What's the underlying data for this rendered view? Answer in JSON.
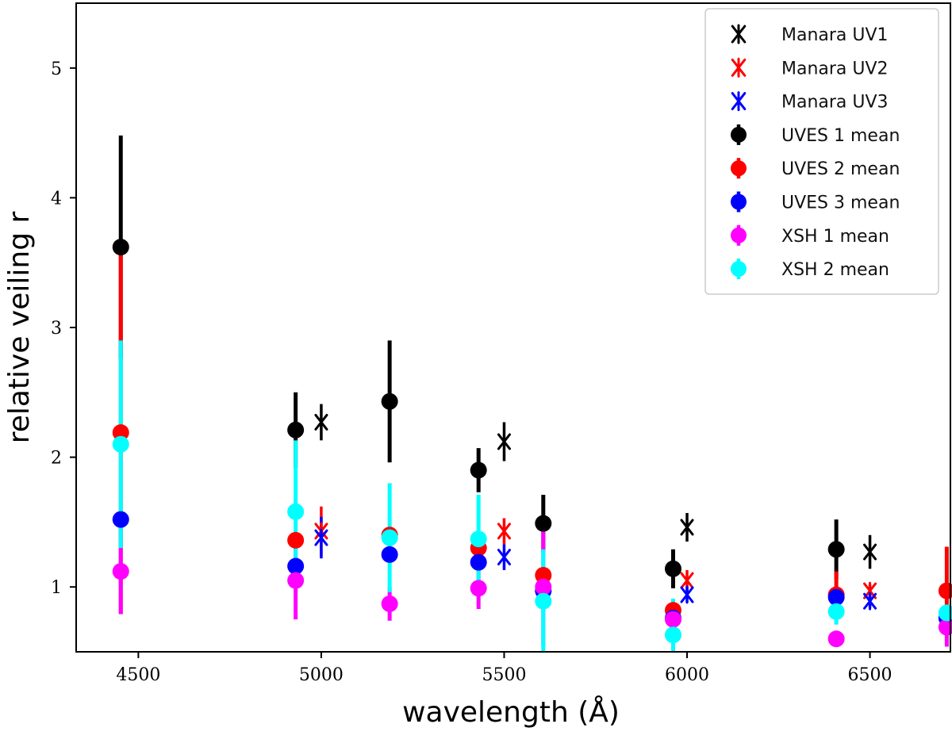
{
  "chart_data": {
    "type": "scatter",
    "title": "",
    "xlabel": "wavelength (Å)",
    "ylabel": "relative veiling r",
    "xlim": [
      4330,
      6720
    ],
    "ylim": [
      0.5,
      5.5
    ],
    "xticks": [
      4500,
      5000,
      5500,
      6000,
      6500
    ],
    "yticks": [
      1,
      2,
      3,
      4,
      5
    ],
    "legend_position": "top-right",
    "series": [
      {
        "name": "Manara UV1",
        "marker": "star",
        "color": "#000000",
        "points": [
          {
            "x": 5000,
            "y": 2.27,
            "err": 0.14
          },
          {
            "x": 5500,
            "y": 2.12,
            "err": 0.15
          },
          {
            "x": 6000,
            "y": 1.46,
            "err": 0.11
          },
          {
            "x": 6500,
            "y": 1.27,
            "err": 0.13
          }
        ]
      },
      {
        "name": "Manara UV2",
        "marker": "star",
        "color": "#ff0000",
        "points": [
          {
            "x": 5000,
            "y": 1.43,
            "err": 0.19
          },
          {
            "x": 5500,
            "y": 1.43,
            "err": 0.1
          },
          {
            "x": 6000,
            "y": 1.05,
            "err": 0.08
          },
          {
            "x": 6500,
            "y": 0.97,
            "err": 0.05
          }
        ]
      },
      {
        "name": "Manara UV3",
        "marker": "star",
        "color": "#0000ff",
        "points": [
          {
            "x": 5000,
            "y": 1.38,
            "err": 0.16
          },
          {
            "x": 5500,
            "y": 1.23,
            "err": 0.1
          },
          {
            "x": 6000,
            "y": 0.94,
            "err": 0.06
          },
          {
            "x": 6500,
            "y": 0.89,
            "err": 0.05
          }
        ]
      },
      {
        "name": "UVES 1 mean",
        "marker": "circle",
        "color": "#000000",
        "points": [
          {
            "x": 4452,
            "y": 3.62,
            "err": 0.86
          },
          {
            "x": 4930,
            "y": 2.21,
            "err": 0.29
          },
          {
            "x": 5187,
            "y": 2.43,
            "err": 0.47
          },
          {
            "x": 5430,
            "y": 1.9,
            "err": 0.17
          },
          {
            "x": 5607,
            "y": 1.49,
            "err": 0.22
          },
          {
            "x": 5962,
            "y": 1.14,
            "err": 0.15
          },
          {
            "x": 6408,
            "y": 1.29,
            "err": 0.23
          }
        ]
      },
      {
        "name": "UVES 2 mean",
        "marker": "circle",
        "color": "#ff0000",
        "points": [
          {
            "x": 4452,
            "y": 2.19,
            "err": 1.4
          },
          {
            "x": 4930,
            "y": 1.36,
            "err": 0.05
          },
          {
            "x": 5187,
            "y": 1.4,
            "err": 0.05
          },
          {
            "x": 5430,
            "y": 1.3,
            "err": 0.05
          },
          {
            "x": 5607,
            "y": 1.09,
            "err": 0.05
          },
          {
            "x": 5962,
            "y": 0.82,
            "err": 0.05
          },
          {
            "x": 6408,
            "y": 0.94,
            "err": 0.18
          },
          {
            "x": 6710,
            "y": 0.97,
            "err": 0.34
          }
        ]
      },
      {
        "name": "UVES 3 mean",
        "marker": "circle",
        "color": "#0000ff",
        "points": [
          {
            "x": 4452,
            "y": 1.52,
            "err": 0.05
          },
          {
            "x": 4930,
            "y": 1.16,
            "err": 0.05
          },
          {
            "x": 5187,
            "y": 1.25,
            "err": 0.05
          },
          {
            "x": 5430,
            "y": 1.19,
            "err": 0.05
          },
          {
            "x": 5607,
            "y": 0.97,
            "err": 0.05
          },
          {
            "x": 5962,
            "y": 0.76,
            "err": 0.05
          },
          {
            "x": 6408,
            "y": 0.92,
            "err": 0.05
          },
          {
            "x": 6710,
            "y": 0.76,
            "err": 0.05
          }
        ]
      },
      {
        "name": "XSH 1 mean",
        "marker": "circle",
        "color": "#ff00ff",
        "points": [
          {
            "x": 4452,
            "y": 1.12,
            "err": 0.33
          },
          {
            "x": 4930,
            "y": 1.05,
            "err": 0.3
          },
          {
            "x": 5187,
            "y": 0.87,
            "err": 0.13
          },
          {
            "x": 5430,
            "y": 0.99,
            "err": 0.16
          },
          {
            "x": 5607,
            "y": 1.0,
            "err": 0.45
          },
          {
            "x": 5962,
            "y": 0.75,
            "err": 0.09
          },
          {
            "x": 6408,
            "y": 0.6,
            "err": 0.05
          },
          {
            "x": 6710,
            "y": 0.69,
            "err": 0.15
          }
        ]
      },
      {
        "name": "XSH 2 mean",
        "marker": "circle",
        "color": "#00ffff",
        "points": [
          {
            "x": 4452,
            "y": 2.1,
            "err": 0.8
          },
          {
            "x": 4930,
            "y": 1.58,
            "err": 0.55
          },
          {
            "x": 5187,
            "y": 1.38,
            "err": 0.42
          },
          {
            "x": 5430,
            "y": 1.37,
            "err": 0.34
          },
          {
            "x": 5607,
            "y": 0.89,
            "err": 0.4
          },
          {
            "x": 5962,
            "y": 0.63,
            "err": 0.28
          },
          {
            "x": 6408,
            "y": 0.81,
            "err": 0.1
          },
          {
            "x": 6710,
            "y": 0.8,
            "err": 0.05
          }
        ]
      }
    ]
  }
}
